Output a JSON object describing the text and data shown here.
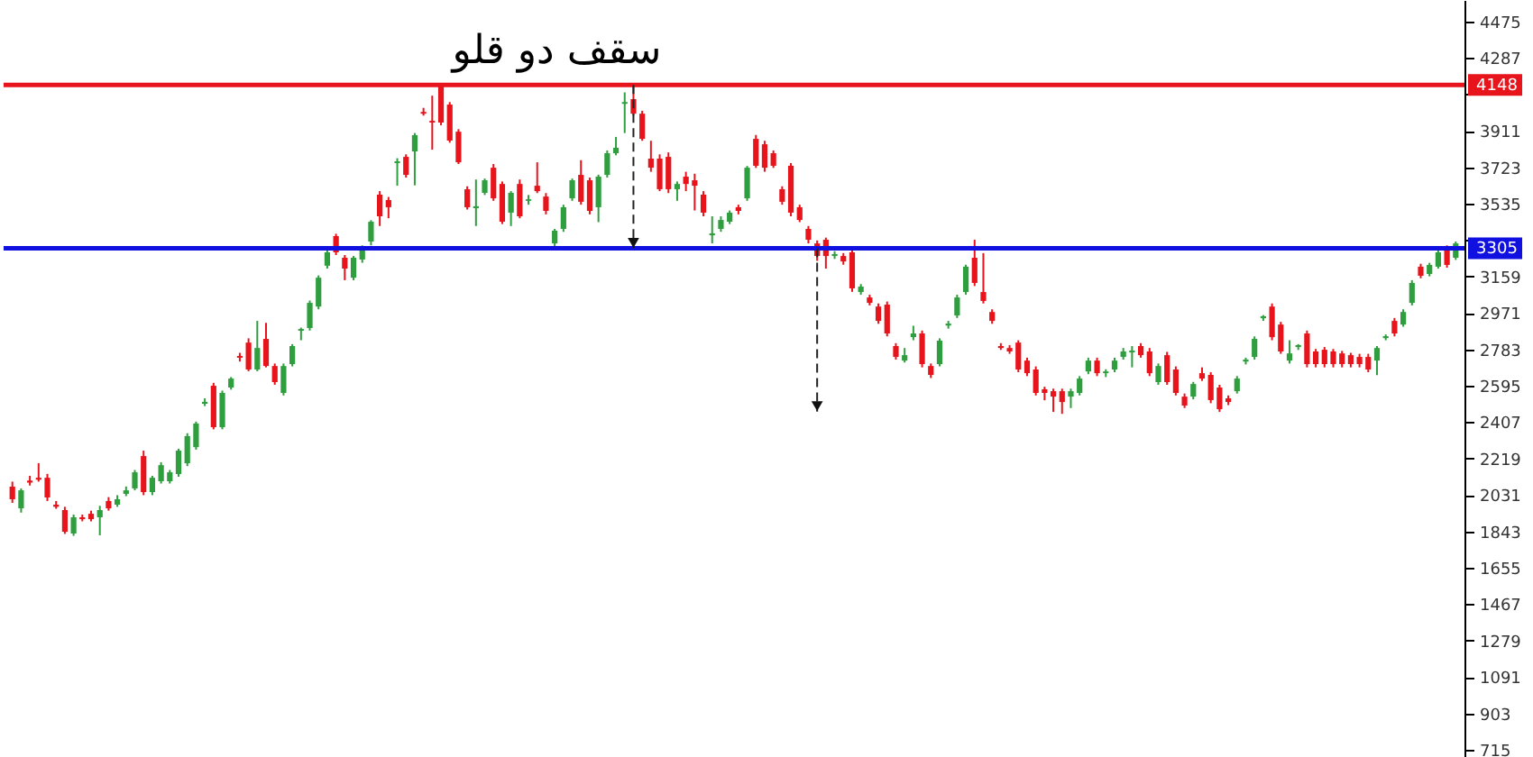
{
  "chart_data": {
    "type": "candlestick",
    "title": "سقف دو قلو",
    "categories": [
      null,
      null,
      null,
      null,
      null,
      null,
      null,
      null,
      null,
      null,
      null,
      null,
      null,
      null,
      null,
      null,
      null,
      null,
      null,
      null,
      null,
      null,
      null,
      null,
      null,
      null,
      null,
      null,
      null,
      null,
      null,
      null,
      null,
      null,
      null,
      null,
      null,
      null,
      null,
      null,
      null,
      null,
      null,
      null,
      null,
      null,
      null,
      null,
      null,
      null,
      null,
      null,
      null,
      null,
      null,
      null,
      null,
      null,
      null,
      null,
      null,
      null,
      null,
      null,
      null,
      null,
      null,
      null,
      null,
      null,
      null,
      null,
      null,
      null,
      null,
      null,
      null,
      null,
      null,
      null,
      null,
      null,
      null,
      null,
      null,
      null,
      null,
      null,
      null,
      null,
      null,
      null,
      null,
      null,
      null,
      null,
      null,
      null,
      null,
      null,
      null,
      null,
      null,
      null,
      null,
      null,
      null,
      null,
      null,
      null,
      null,
      null,
      null,
      null,
      null,
      null,
      null,
      null,
      null,
      null,
      null,
      null,
      null,
      null,
      null,
      null,
      null,
      null,
      null,
      null,
      null,
      null,
      null,
      null,
      null,
      null,
      null,
      null,
      null,
      null,
      null,
      null,
      null,
      null,
      null,
      null,
      null,
      null,
      null,
      null,
      null,
      null,
      null,
      null,
      null,
      null,
      null,
      null,
      null,
      null,
      null,
      null,
      null,
      null,
      null,
      null
    ],
    "ohlc": [
      [
        2074,
        2100,
        1990,
        2009
      ],
      [
        1962,
        2065,
        1940,
        2055
      ],
      [
        2105,
        2130,
        2080,
        2095
      ],
      [
        2120,
        2195,
        2100,
        2110
      ],
      [
        2120,
        2140,
        2000,
        2018
      ],
      [
        1981,
        2000,
        1960,
        1970
      ],
      [
        1953,
        1970,
        1830,
        1841
      ],
      [
        1832,
        1930,
        1820,
        1916
      ],
      [
        1916,
        1930,
        1895,
        1906
      ],
      [
        1934,
        1950,
        1895,
        1906
      ],
      [
        1916,
        1975,
        1823,
        1953
      ],
      [
        2000,
        2020,
        1950,
        1962
      ],
      [
        1981,
        2030,
        1970,
        2009
      ],
      [
        2037,
        2075,
        2025,
        2055
      ],
      [
        2065,
        2160,
        2055,
        2148
      ],
      [
        2232,
        2260,
        2030,
        2046
      ],
      [
        2046,
        2130,
        2030,
        2120
      ],
      [
        2102,
        2200,
        2090,
        2185
      ],
      [
        2102,
        2160,
        2090,
        2148
      ],
      [
        2139,
        2270,
        2125,
        2260
      ],
      [
        2195,
        2350,
        2180,
        2335
      ],
      [
        2278,
        2410,
        2265,
        2400
      ],
      [
        2502,
        2530,
        2490,
        2512
      ],
      [
        2595,
        2610,
        2370,
        2381
      ],
      [
        2381,
        2570,
        2370,
        2558
      ],
      [
        2586,
        2640,
        2575,
        2632
      ],
      [
        2749,
        2765,
        2720,
        2740
      ],
      [
        2818,
        2840,
        2670,
        2679
      ],
      [
        2679,
        2930,
        2670,
        2790
      ],
      [
        2837,
        2920,
        2690,
        2697
      ],
      [
        2697,
        2710,
        2600,
        2614
      ],
      [
        2558,
        2710,
        2545,
        2697
      ],
      [
        2707,
        2810,
        2695,
        2800
      ],
      [
        2879,
        2895,
        2830,
        2888
      ],
      [
        2893,
        3035,
        2880,
        3023
      ],
      [
        3004,
        3165,
        2990,
        3153
      ],
      [
        3215,
        3295,
        3200,
        3284
      ],
      [
        3368,
        3380,
        3270,
        3284
      ],
      [
        3256,
        3270,
        3140,
        3200
      ],
      [
        3153,
        3265,
        3140,
        3256
      ],
      [
        3247,
        3320,
        3230,
        3303
      ],
      [
        3340,
        3450,
        3320,
        3442
      ],
      [
        3582,
        3600,
        3420,
        3470
      ],
      [
        3554,
        3570,
        3460,
        3517
      ],
      [
        3745,
        3770,
        3628,
        3754
      ],
      [
        3777,
        3790,
        3670,
        3684
      ],
      [
        3805,
        3900,
        3630,
        3889
      ],
      [
        4009,
        4030,
        3990,
        4000
      ],
      [
        3963,
        4093,
        3814,
        3954
      ],
      [
        4140,
        4148,
        3940,
        3954
      ],
      [
        4047,
        4060,
        3850,
        3861
      ],
      [
        3907,
        3920,
        3740,
        3749
      ],
      [
        3610,
        3625,
        3505,
        3517
      ],
      [
        3512,
        3660,
        3420,
        3522
      ],
      [
        3591,
        3665,
        3580,
        3656
      ],
      [
        3721,
        3740,
        3550,
        3563
      ],
      [
        3637,
        3650,
        3430,
        3442
      ],
      [
        3489,
        3600,
        3420,
        3591
      ],
      [
        3637,
        3660,
        3460,
        3470
      ],
      [
        3550,
        3580,
        3530,
        3558
      ],
      [
        3628,
        3749,
        3590,
        3600
      ],
      [
        3572,
        3590,
        3480,
        3498
      ],
      [
        3330,
        3405,
        3305,
        3396
      ],
      [
        3405,
        3530,
        3390,
        3517
      ],
      [
        3563,
        3665,
        3550,
        3656
      ],
      [
        3684,
        3760,
        3530,
        3545
      ],
      [
        3656,
        3670,
        3480,
        3498
      ],
      [
        3517,
        3685,
        3440,
        3675
      ],
      [
        3684,
        3810,
        3670,
        3796
      ],
      [
        3796,
        3880,
        3785,
        3824
      ],
      [
        4051,
        4110,
        3900,
        4060
      ],
      [
        4075,
        4148,
        3990,
        4000
      ],
      [
        4000,
        4015,
        3860,
        3870
      ],
      [
        3768,
        3860,
        3700,
        3721
      ],
      [
        3768,
        3790,
        3600,
        3610
      ],
      [
        3777,
        3800,
        3590,
        3610
      ],
      [
        3610,
        3650,
        3550,
        3637
      ],
      [
        3675,
        3700,
        3600,
        3637
      ],
      [
        3656,
        3690,
        3500,
        3628
      ],
      [
        3582,
        3600,
        3470,
        3489
      ],
      [
        3372,
        3470,
        3330,
        3382
      ],
      [
        3405,
        3470,
        3390,
        3451
      ],
      [
        3442,
        3500,
        3430,
        3489
      ],
      [
        3517,
        3530,
        3480,
        3498
      ],
      [
        3563,
        3730,
        3550,
        3721
      ],
      [
        3870,
        3890,
        3720,
        3731
      ],
      [
        3842,
        3860,
        3700,
        3721
      ],
      [
        3796,
        3810,
        3720,
        3731
      ],
      [
        3610,
        3625,
        3530,
        3545
      ],
      [
        3731,
        3745,
        3470,
        3489
      ],
      [
        3517,
        3530,
        3440,
        3451
      ],
      [
        3405,
        3420,
        3330,
        3349
      ],
      [
        3330,
        3345,
        3240,
        3265
      ],
      [
        3349,
        3360,
        3200,
        3265
      ],
      [
        3265,
        3290,
        3250,
        3275
      ],
      [
        3265,
        3280,
        3220,
        3237
      ],
      [
        3284,
        3300,
        3080,
        3098
      ],
      [
        3079,
        3120,
        3065,
        3107
      ],
      [
        3051,
        3065,
        3010,
        3023
      ],
      [
        3004,
        3020,
        2915,
        2930
      ],
      [
        3014,
        3030,
        2850,
        2865
      ],
      [
        2800,
        2815,
        2730,
        2744
      ],
      [
        2725,
        2790,
        2715,
        2753
      ],
      [
        2846,
        2905,
        2830,
        2865
      ],
      [
        2865,
        2880,
        2690,
        2707
      ],
      [
        2697,
        2710,
        2635,
        2651
      ],
      [
        2707,
        2840,
        2695,
        2828
      ],
      [
        2906,
        2930,
        2890,
        2916
      ],
      [
        2958,
        3065,
        2945,
        3051
      ],
      [
        3079,
        3220,
        3065,
        3210
      ],
      [
        3256,
        3349,
        3110,
        3126
      ],
      [
        3079,
        3280,
        3020,
        3033
      ],
      [
        2976,
        2990,
        2915,
        2930
      ],
      [
        2800,
        2815,
        2780,
        2790
      ],
      [
        2790,
        2805,
        2760,
        2772
      ],
      [
        2818,
        2830,
        2665,
        2679
      ],
      [
        2725,
        2740,
        2645,
        2660
      ],
      [
        2679,
        2695,
        2545,
        2558
      ],
      [
        2577,
        2590,
        2520,
        2558
      ],
      [
        2567,
        2580,
        2460,
        2539
      ],
      [
        2567,
        2580,
        2450,
        2511
      ],
      [
        2539,
        2580,
        2480,
        2567
      ],
      [
        2558,
        2645,
        2545,
        2632
      ],
      [
        2669,
        2740,
        2655,
        2725
      ],
      [
        2725,
        2740,
        2645,
        2660
      ],
      [
        2660,
        2680,
        2640,
        2669
      ],
      [
        2679,
        2740,
        2665,
        2725
      ],
      [
        2744,
        2790,
        2730,
        2772
      ],
      [
        2767,
        2800,
        2690,
        2777
      ],
      [
        2800,
        2815,
        2740,
        2753
      ],
      [
        2772,
        2790,
        2645,
        2660
      ],
      [
        2614,
        2710,
        2600,
        2697
      ],
      [
        2753,
        2770,
        2600,
        2614
      ],
      [
        2679,
        2695,
        2545,
        2558
      ],
      [
        2539,
        2555,
        2480,
        2493
      ],
      [
        2539,
        2615,
        2525,
        2604
      ],
      [
        2660,
        2690,
        2620,
        2632
      ],
      [
        2651,
        2665,
        2505,
        2521
      ],
      [
        2586,
        2600,
        2460,
        2474
      ],
      [
        2530,
        2545,
        2495,
        2511
      ],
      [
        2567,
        2645,
        2555,
        2632
      ],
      [
        2720,
        2740,
        2705,
        2730
      ],
      [
        2744,
        2850,
        2730,
        2837
      ],
      [
        2944,
        2960,
        2930,
        2954
      ],
      [
        3004,
        3020,
        2830,
        2846
      ],
      [
        2911,
        2925,
        2760,
        2772
      ],
      [
        2725,
        2830,
        2710,
        2762
      ],
      [
        2795,
        2810,
        2780,
        2805
      ],
      [
        2865,
        2880,
        2690,
        2707
      ],
      [
        2772,
        2785,
        2690,
        2707
      ],
      [
        2781,
        2795,
        2690,
        2707
      ],
      [
        2772,
        2785,
        2690,
        2707
      ],
      [
        2762,
        2775,
        2690,
        2707
      ],
      [
        2753,
        2765,
        2690,
        2707
      ],
      [
        2744,
        2760,
        2690,
        2707
      ],
      [
        2744,
        2760,
        2665,
        2679
      ],
      [
        2725,
        2800,
        2650,
        2790
      ],
      [
        2841,
        2860,
        2830,
        2851
      ],
      [
        2930,
        2945,
        2850,
        2865
      ],
      [
        2911,
        2990,
        2900,
        2976
      ],
      [
        3023,
        3140,
        3010,
        3126
      ],
      [
        3210,
        3225,
        3150,
        3163
      ],
      [
        3172,
        3230,
        3160,
        3219
      ],
      [
        3210,
        3295,
        3200,
        3284
      ],
      [
        3303,
        3320,
        3205,
        3219
      ],
      [
        3256,
        3340,
        3245,
        3330
      ]
    ],
    "colors": [
      "#e8141c",
      "#2e9e3e",
      "#e8141c",
      "#e8141c",
      "#e8141c",
      "#e8141c",
      "#e8141c",
      "#2e9e3e",
      "#e8141c",
      "#e8141c",
      "#2e9e3e",
      "#e8141c",
      "#2e9e3e",
      "#2e9e3e",
      "#2e9e3e",
      "#e8141c",
      "#2e9e3e",
      "#2e9e3e",
      "#2e9e3e",
      "#2e9e3e",
      "#2e9e3e",
      "#2e9e3e",
      "#2e9e3e",
      "#e8141c",
      "#2e9e3e",
      "#2e9e3e",
      "#e8141c",
      "#e8141c",
      "#2e9e3e",
      "#e8141c",
      "#e8141c",
      "#2e9e3e",
      "#2e9e3e",
      "#2e9e3e",
      "#2e9e3e",
      "#2e9e3e",
      "#2e9e3e",
      "#e8141c",
      "#e8141c",
      "#2e9e3e",
      "#2e9e3e",
      "#2e9e3e",
      "#e8141c",
      "#e8141c",
      "#2e9e3e",
      "#e8141c",
      "#2e9e3e",
      "#e8141c",
      "#e8141c",
      "#e8141c",
      "#e8141c",
      "#e8141c",
      "#e8141c",
      "#2e9e3e",
      "#2e9e3e",
      "#e8141c",
      "#e8141c",
      "#2e9e3e",
      "#e8141c",
      "#2e9e3e",
      "#e8141c",
      "#e8141c",
      "#2e9e3e",
      "#2e9e3e",
      "#2e9e3e",
      "#e8141c",
      "#e8141c",
      "#2e9e3e",
      "#2e9e3e",
      "#2e9e3e",
      "#2e9e3e",
      "#e8141c",
      "#e8141c",
      "#e8141c",
      "#e8141c",
      "#e8141c",
      "#2e9e3e",
      "#e8141c",
      "#e8141c",
      "#e8141c",
      "#2e9e3e",
      "#2e9e3e",
      "#2e9e3e",
      "#e8141c",
      "#2e9e3e",
      "#e8141c",
      "#e8141c",
      "#e8141c",
      "#e8141c",
      "#e8141c",
      "#e8141c",
      "#e8141c",
      "#e8141c",
      "#e8141c",
      "#2e9e3e",
      "#e8141c",
      "#e8141c",
      "#2e9e3e",
      "#e8141c",
      "#e8141c",
      "#e8141c",
      "#e8141c",
      "#2e9e3e",
      "#2e9e3e",
      "#e8141c",
      "#e8141c",
      "#2e9e3e",
      "#2e9e3e",
      "#2e9e3e",
      "#2e9e3e",
      "#e8141c",
      "#e8141c",
      "#e8141c",
      "#e8141c",
      "#e8141c",
      "#e8141c",
      "#e8141c",
      "#e8141c",
      "#e8141c",
      "#e8141c",
      "#e8141c",
      "#2e9e3e",
      "#2e9e3e",
      "#2e9e3e",
      "#e8141c",
      "#2e9e3e",
      "#2e9e3e",
      "#2e9e3e",
      "#2e9e3e",
      "#e8141c",
      "#e8141c",
      "#2e9e3e",
      "#e8141c",
      "#e8141c",
      "#e8141c",
      "#2e9e3e",
      "#e8141c",
      "#e8141c",
      "#e8141c",
      "#e8141c",
      "#2e9e3e",
      "#2e9e3e",
      "#2e9e3e",
      "#2e9e3e",
      "#e8141c",
      "#e8141c",
      "#2e9e3e",
      "#2e9e3e",
      "#e8141c",
      "#e8141c",
      "#e8141c",
      "#e8141c",
      "#e8141c",
      "#e8141c",
      "#e8141c",
      "#e8141c",
      "#2e9e3e",
      "#2e9e3e",
      "#e8141c",
      "#2e9e3e",
      "#2e9e3e",
      "#e8141c",
      "#2e9e3e",
      "#2e9e3e",
      "#e8141c",
      "#2e9e3e"
    ],
    "ylim": [
      678,
      4587
    ],
    "yticks": [
      715,
      903,
      1091,
      1279,
      1467,
      1655,
      1843,
      2031,
      2219,
      2407,
      2595,
      2783,
      2971,
      3159,
      {
        "value": 3347,
        "label": null
      },
      3535,
      3723,
      3911,
      {
        "value": 4099,
        "label": null
      },
      4287,
      4475
    ],
    "ref_lines": [
      {
        "axis": "y",
        "value": 4148,
        "label": "4148",
        "color": "#e8141c"
      },
      {
        "axis": "y",
        "value": 3305,
        "label": "3305",
        "color": "#1010e0"
      }
    ],
    "tick_labels": "y"
  }
}
